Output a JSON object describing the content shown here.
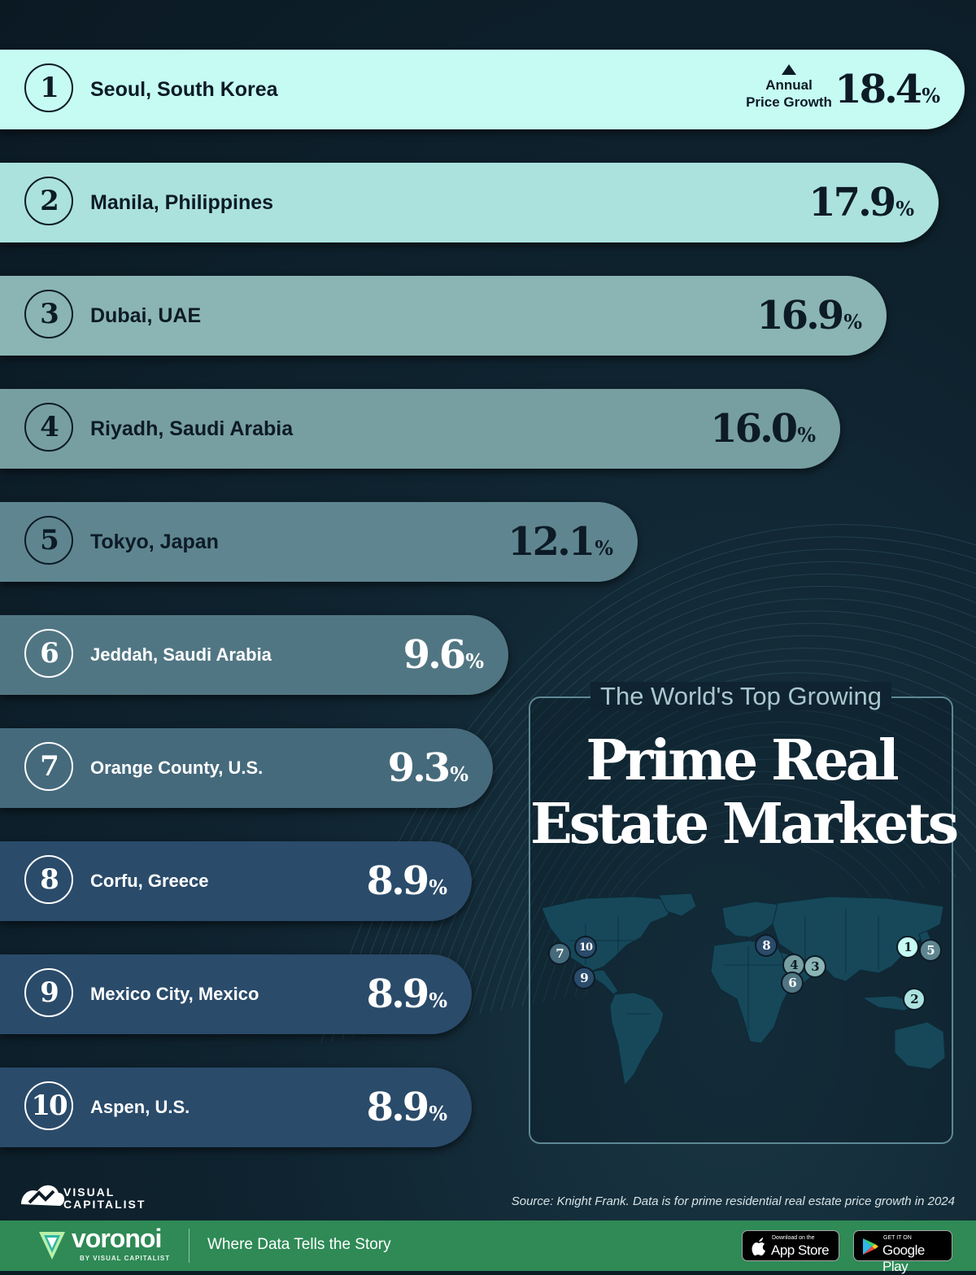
{
  "chart_data": {
    "type": "bar",
    "orientation": "horizontal",
    "title": "Prime Real Estate Markets",
    "subtitle": "The World's Top Growing",
    "value_label": "Annual Price Growth",
    "unit": "%",
    "categories": [
      "Seoul, South Korea",
      "Manila, Philippines",
      "Dubai, UAE",
      "Riyadh, Saudi Arabia",
      "Tokyo, Japan",
      "Jeddah, Saudi Arabia",
      "Orange County, U.S.",
      "Corfu, Greece",
      "Mexico City, Mexico",
      "Aspen, U.S."
    ],
    "ranks": [
      "1",
      "2",
      "3",
      "4",
      "5",
      "6",
      "7",
      "8",
      "9",
      "10"
    ],
    "values": [
      18.4,
      17.9,
      16.9,
      16.0,
      12.1,
      9.6,
      9.3,
      8.9,
      8.9,
      8.9
    ],
    "value_labels": [
      "18.4",
      "17.9",
      "16.9",
      "16.0",
      "12.1",
      "9.6",
      "9.3",
      "8.9",
      "8.9",
      "8.9"
    ],
    "bar_colors": [
      "#c5fbf3",
      "#abe2de",
      "#8ab5b4",
      "#779fa2",
      "#5f8690",
      "#517683",
      "#456a7c",
      "#2a4b6a",
      "#2a4b6a",
      "#2a4b6a"
    ],
    "grid": false,
    "legend": "none"
  },
  "annotation": {
    "line1": "Annual",
    "line2": "Price Growth"
  },
  "panel": {
    "subtitle": "The World's Top Growing",
    "title_line1": "Prime Real",
    "title_line2": "Estate Markets"
  },
  "map_pins": [
    {
      "label": "1",
      "color": "#c5fbf3",
      "text_color": "#0d1b26"
    },
    {
      "label": "2",
      "color": "#abe2de",
      "text_color": "#0d1b26"
    },
    {
      "label": "3",
      "color": "#8ab5b4",
      "text_color": "#0d1b26"
    },
    {
      "label": "4",
      "color": "#779fa2",
      "text_color": "#0d1b26"
    },
    {
      "label": "5",
      "color": "#5f8690",
      "text_color": "#ffffff"
    },
    {
      "label": "6",
      "color": "#517683",
      "text_color": "#ffffff"
    },
    {
      "label": "7",
      "color": "#456a7c",
      "text_color": "#ffffff"
    },
    {
      "label": "8",
      "color": "#2a4b6a",
      "text_color": "#ffffff"
    },
    {
      "label": "9",
      "color": "#2a4b6a",
      "text_color": "#ffffff"
    },
    {
      "label": "10",
      "color": "#2a4b6a",
      "text_color": "#ffffff"
    }
  ],
  "source": "Source: Knight Frank. Data is for prime residential real estate price growth in 2024",
  "brand": {
    "vc_line1": "VISUAL",
    "vc_line2": "CAPITALIST",
    "voronoi": "voronoi",
    "voronoi_by": "BY VISUAL CAPITALIST",
    "tagline": "Where Data Tells the Story",
    "app_store_small": "Download on the",
    "app_store_big": "App Store",
    "google_play_small": "GET IT ON",
    "google_play_big": "Google Play"
  },
  "colors": {
    "background": "#0c1c27",
    "footer": "#2f8a56",
    "text_dark": "#0d1b26",
    "panel_border": "#5e8894"
  }
}
